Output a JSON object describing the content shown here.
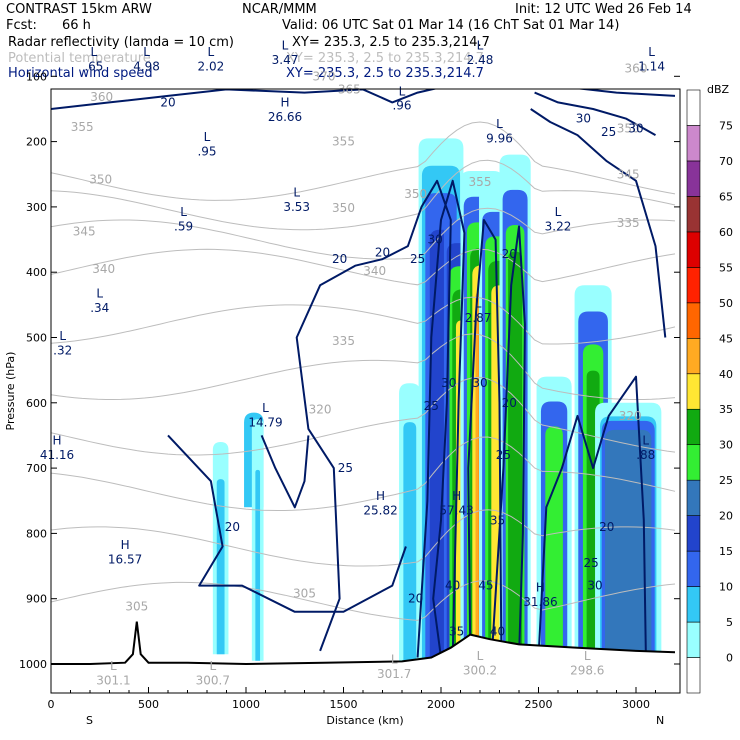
{
  "header": {
    "model": "CONTRAST 15km ARW",
    "org": "NCAR/MMM",
    "init": "Init: 12 UTC Wed 26 Feb 14",
    "fcst_label": "Fcst:",
    "fcst_value": "66 h",
    "valid": "Valid: 06 UTC Sat 01 Mar 14 (16 ChT Sat 01 Mar 14)",
    "fields": [
      {
        "name": "Radar reflectivity (lamda = 10 cm)",
        "xy": "XY= 235.3,  2.5 to 235.3,214.7",
        "color": "#000000"
      },
      {
        "name": "Potential temperature",
        "xy": "XY= 235.3,  2.5 to 235.3,214.7",
        "color": "#bdbdbd"
      },
      {
        "name": "Horizontal wind speed",
        "xy": "XY= 235.3,  2.5 to 235.3,214.7",
        "color": "#001a80"
      }
    ]
  },
  "chart_data": {
    "type": "cross-section",
    "xlabel": "Distance (km)",
    "ylabel": "Pressure (hPa)",
    "xlim": [
      0,
      3200
    ],
    "ylim": [
      1050,
      55
    ],
    "x_ticks": [
      0,
      500,
      1000,
      1500,
      2000,
      2500,
      3000
    ],
    "y_ticks": [
      100,
      200,
      300,
      400,
      500,
      600,
      700,
      800,
      900,
      1000
    ],
    "x_end_labels": {
      "left": "S",
      "right": "N"
    },
    "colorbar": {
      "unit": "dBZ",
      "levels": [
        0,
        5,
        10,
        15,
        20,
        25,
        30,
        35,
        40,
        45,
        50,
        55,
        60,
        65,
        70,
        75
      ],
      "colors": [
        "#ffffff",
        "#99ffff",
        "#33c8f5",
        "#3366ee",
        "#2244cc",
        "#3377bb",
        "#33ee33",
        "#11aa11",
        "#ffe633",
        "#ffaa22",
        "#ff6600",
        "#ff2200",
        "#dd0000",
        "#993333",
        "#883399",
        "#cc88cc",
        "#ffffff"
      ]
    },
    "terrain": [
      [
        0,
        1000
      ],
      [
        200,
        1000
      ],
      [
        380,
        998
      ],
      [
        420,
        985
      ],
      [
        440,
        935
      ],
      [
        460,
        985
      ],
      [
        500,
        998
      ],
      [
        700,
        998
      ],
      [
        1000,
        1000
      ],
      [
        1400,
        998
      ],
      [
        1800,
        996
      ],
      [
        1950,
        990
      ],
      [
        2050,
        975
      ],
      [
        2150,
        955
      ],
      [
        2250,
        962
      ],
      [
        2400,
        970
      ],
      [
        2700,
        975
      ],
      [
        3000,
        980
      ],
      [
        3200,
        982
      ]
    ],
    "theta_labels": [
      {
        "x": 440,
        "p": 912,
        "text": "305"
      },
      {
        "x": 1300,
        "p": 892,
        "text": "305"
      },
      {
        "x": 1380,
        "p": 610,
        "text": "320"
      },
      {
        "x": 1500,
        "p": 505,
        "text": "335"
      },
      {
        "x": 1660,
        "p": 398,
        "text": "340"
      },
      {
        "x": 270,
        "p": 395,
        "text": "340"
      },
      {
        "x": 170,
        "p": 338,
        "text": "345"
      },
      {
        "x": 1500,
        "p": 302,
        "text": "350"
      },
      {
        "x": 1870,
        "p": 280,
        "text": "350"
      },
      {
        "x": 255,
        "p": 258,
        "text": "350"
      },
      {
        "x": 1500,
        "p": 200,
        "text": "355"
      },
      {
        "x": 160,
        "p": 178,
        "text": "355"
      },
      {
        "x": 260,
        "p": 132,
        "text": "360"
      },
      {
        "x": 1530,
        "p": 120,
        "text": "365"
      },
      {
        "x": 1400,
        "p": 100,
        "text": "370"
      },
      {
        "x": 2200,
        "p": 262,
        "text": "355"
      },
      {
        "x": 2960,
        "p": 325,
        "text": "335"
      },
      {
        "x": 2960,
        "p": 250,
        "text": "345"
      },
      {
        "x": 2960,
        "p": 180,
        "text": "350"
      },
      {
        "x": 3000,
        "p": 88,
        "text": "360"
      },
      {
        "x": 2970,
        "p": 620,
        "text": "320"
      }
    ],
    "wind_labels": [
      {
        "x": 600,
        "p": 140,
        "text": "20"
      },
      {
        "x": 1480,
        "p": 380,
        "text": "20"
      },
      {
        "x": 1700,
        "p": 370,
        "text": "20"
      },
      {
        "x": 1880,
        "p": 380,
        "text": "25"
      },
      {
        "x": 1970,
        "p": 350,
        "text": "30"
      },
      {
        "x": 1950,
        "p": 605,
        "text": "25"
      },
      {
        "x": 1510,
        "p": 700,
        "text": "25"
      },
      {
        "x": 930,
        "p": 790,
        "text": "20"
      },
      {
        "x": 1870,
        "p": 900,
        "text": "20"
      },
      {
        "x": 2040,
        "p": 570,
        "text": "30"
      },
      {
        "x": 2200,
        "p": 570,
        "text": "30"
      },
      {
        "x": 2350,
        "p": 600,
        "text": "20"
      },
      {
        "x": 2320,
        "p": 680,
        "text": "25"
      },
      {
        "x": 2350,
        "p": 372,
        "text": "20"
      },
      {
        "x": 2730,
        "p": 165,
        "text": "30"
      },
      {
        "x": 2860,
        "p": 185,
        "text": "25"
      },
      {
        "x": 3000,
        "p": 180,
        "text": "30"
      },
      {
        "x": 2850,
        "p": 790,
        "text": "20"
      },
      {
        "x": 2770,
        "p": 845,
        "text": "25"
      },
      {
        "x": 2790,
        "p": 880,
        "text": "30"
      },
      {
        "x": 2060,
        "p": 880,
        "text": "40"
      },
      {
        "x": 2230,
        "p": 880,
        "text": "45"
      },
      {
        "x": 2290,
        "p": 780,
        "text": "35"
      },
      {
        "x": 2290,
        "p": 950,
        "text": "40"
      },
      {
        "x": 2080,
        "p": 950,
        "text": "35"
      }
    ],
    "extrema": [
      {
        "x": 220,
        "p": 85,
        "letter": "L",
        "value": ".65"
      },
      {
        "x": 490,
        "p": 85,
        "letter": "L",
        "value": "4.98"
      },
      {
        "x": 820,
        "p": 85,
        "letter": "L",
        "value": "2.02"
      },
      {
        "x": 1200,
        "p": 75,
        "letter": "L",
        "value": "3.47"
      },
      {
        "x": 2200,
        "p": 75,
        "letter": "L",
        "value": "2.48"
      },
      {
        "x": 3080,
        "p": 85,
        "letter": "L",
        "value": "1.14"
      },
      {
        "x": 1200,
        "p": 162,
        "letter": "H",
        "value": "26.66"
      },
      {
        "x": 1800,
        "p": 145,
        "letter": "L",
        "value": ".96"
      },
      {
        "x": 2300,
        "p": 195,
        "letter": "L",
        "value": "9.96"
      },
      {
        "x": 800,
        "p": 215,
        "letter": "L",
        "value": ".95"
      },
      {
        "x": 1260,
        "p": 300,
        "letter": "L",
        "value": "3.53"
      },
      {
        "x": 680,
        "p": 330,
        "letter": "L",
        "value": ".59"
      },
      {
        "x": 2600,
        "p": 330,
        "letter": "L",
        "value": "3.22"
      },
      {
        "x": 250,
        "p": 455,
        "letter": "L",
        "value": ".34"
      },
      {
        "x": 2190,
        "p": 470,
        "letter": "L",
        "value": "2.87"
      },
      {
        "x": 60,
        "p": 520,
        "letter": "L",
        "value": ".32"
      },
      {
        "x": 1100,
        "p": 630,
        "letter": "L",
        "value": "14.79"
      },
      {
        "x": 20,
        "p": 680,
        "letter": "H",
        "value": "41.16"
      },
      {
        "x": 3050,
        "p": 680,
        "letter": "L",
        "value": ".88"
      },
      {
        "x": 1690,
        "p": 765,
        "letter": "H",
        "value": "25.82"
      },
      {
        "x": 2080,
        "p": 765,
        "letter": "H",
        "value": "57.43"
      },
      {
        "x": 380,
        "p": 840,
        "letter": "H",
        "value": "16.57"
      },
      {
        "x": 2510,
        "p": 905,
        "letter": "H",
        "value": "31.86"
      },
      {
        "x": 2200,
        "p": 1010,
        "letter": "L",
        "value": "300.2"
      },
      {
        "x": 2750,
        "p": 1010,
        "letter": "L",
        "value": "298.6"
      },
      {
        "x": 320,
        "p": 1025,
        "letter": "L",
        "value": "301.1"
      },
      {
        "x": 830,
        "p": 1025,
        "letter": "L",
        "value": "300.7"
      },
      {
        "x": 1760,
        "p": 1015,
        "letter": "L",
        "value": "301.7"
      }
    ]
  }
}
